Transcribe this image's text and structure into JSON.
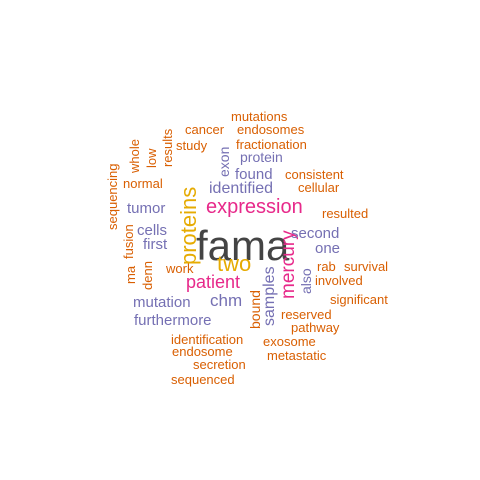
{
  "palette": {
    "orange": "#d95f02",
    "purple": "#7570b3",
    "magenta": "#e7298a",
    "gold": "#e6ab02",
    "gray": "#444444"
  },
  "words": [
    {
      "text": "fama",
      "color": "gray"
    },
    {
      "text": "proteins",
      "color": "gold"
    },
    {
      "text": "two",
      "color": "gold"
    },
    {
      "text": "expression",
      "color": "magenta"
    },
    {
      "text": "patient",
      "color": "magenta"
    },
    {
      "text": "mercury",
      "color": "magenta"
    },
    {
      "text": "identified",
      "color": "purple"
    },
    {
      "text": "chm",
      "color": "purple"
    },
    {
      "text": "mutation",
      "color": "purple"
    },
    {
      "text": "samples",
      "color": "purple"
    },
    {
      "text": "second",
      "color": "purple"
    },
    {
      "text": "one",
      "color": "purple"
    },
    {
      "text": "protein",
      "color": "purple"
    },
    {
      "text": "found",
      "color": "purple"
    },
    {
      "text": "tumor",
      "color": "purple"
    },
    {
      "text": "cells",
      "color": "purple"
    },
    {
      "text": "first",
      "color": "purple"
    },
    {
      "text": "furthermore",
      "color": "purple"
    },
    {
      "text": "exon",
      "color": "purple"
    },
    {
      "text": "bound",
      "color": "orange"
    },
    {
      "text": "also",
      "color": "purple"
    },
    {
      "text": "mutations",
      "color": "orange"
    },
    {
      "text": "cancer",
      "color": "orange"
    },
    {
      "text": "endosomes",
      "color": "orange"
    },
    {
      "text": "study",
      "color": "orange"
    },
    {
      "text": "fractionation",
      "color": "orange"
    },
    {
      "text": "results",
      "color": "orange"
    },
    {
      "text": "low",
      "color": "orange"
    },
    {
      "text": "whole",
      "color": "orange"
    },
    {
      "text": "normal",
      "color": "orange"
    },
    {
      "text": "sequencing",
      "color": "orange"
    },
    {
      "text": "consistent",
      "color": "orange"
    },
    {
      "text": "cellular",
      "color": "orange"
    },
    {
      "text": "resulted",
      "color": "orange"
    },
    {
      "text": "fusion",
      "color": "orange"
    },
    {
      "text": "ma",
      "color": "orange"
    },
    {
      "text": "denn",
      "color": "orange"
    },
    {
      "text": "work",
      "color": "orange"
    },
    {
      "text": "rab",
      "color": "orange"
    },
    {
      "text": "survival",
      "color": "orange"
    },
    {
      "text": "involved",
      "color": "orange"
    },
    {
      "text": "significant",
      "color": "orange"
    },
    {
      "text": "reserved",
      "color": "orange"
    },
    {
      "text": "pathway",
      "color": "orange"
    },
    {
      "text": "identification",
      "color": "orange"
    },
    {
      "text": "exosome",
      "color": "orange"
    },
    {
      "text": "endosome",
      "color": "orange"
    },
    {
      "text": "metastatic",
      "color": "orange"
    },
    {
      "text": "secretion",
      "color": "orange"
    },
    {
      "text": "sequenced",
      "color": "orange"
    }
  ]
}
